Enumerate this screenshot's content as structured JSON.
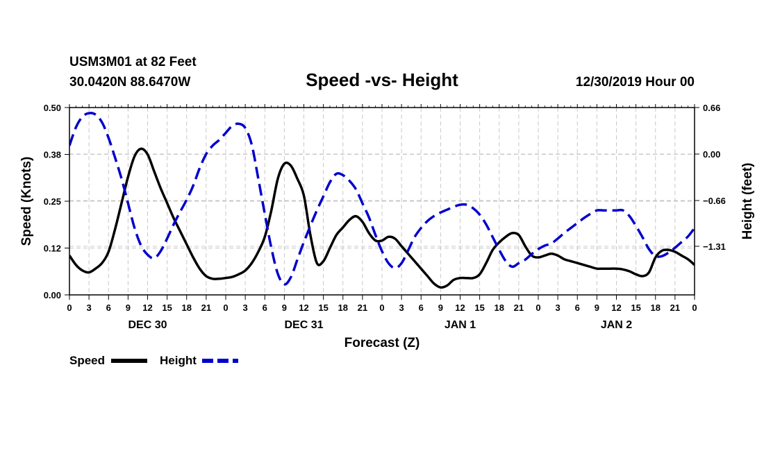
{
  "header": {
    "station": "USM3M01 at 82 Feet",
    "coords": "30.0420N 88.6470W",
    "title": "Speed -vs- Height",
    "datetime": "12/30/2019 Hour 00"
  },
  "chart_data": {
    "type": "line",
    "title": "Speed -vs- Height",
    "xlabel": "Forecast (Z)",
    "ylabel_left": "Speed (Knots)",
    "ylabel_right": "Height (feet)",
    "x_range_hours": [
      0,
      96
    ],
    "ylim_left": [
      0.0,
      0.5
    ],
    "ylim_right": [
      -2.0,
      0.66
    ],
    "y_ticks_left": [
      "0.00",
      "0.12",
      "0.25",
      "0.38",
      "0.50"
    ],
    "y_ticks_left_values": [
      0.0,
      0.125,
      0.25,
      0.375,
      0.5
    ],
    "y_ticks_right": [
      "0.66",
      "0.00",
      "−0.66",
      "−1.31"
    ],
    "y_ticks_right_values": [
      0.66,
      0.0,
      -0.66,
      -1.31
    ],
    "x_tick_labels": [
      "0",
      "3",
      "6",
      "9",
      "12",
      "15",
      "18",
      "21",
      "0",
      "3",
      "6",
      "9",
      "12",
      "15",
      "18",
      "21",
      "0",
      "3",
      "6",
      "9",
      "12",
      "15",
      "18",
      "21",
      "0",
      "3",
      "6",
      "9",
      "12",
      "15",
      "18",
      "21",
      "0"
    ],
    "date_labels": [
      {
        "label": "DEC 30",
        "hour": 12
      },
      {
        "label": "DEC 31",
        "hour": 36
      },
      {
        "label": "JAN 1",
        "hour": 60
      },
      {
        "label": "JAN 2",
        "hour": 84
      }
    ],
    "grid": true,
    "legend_position": "bottom-left",
    "series": [
      {
        "name": "Speed",
        "axis": "left",
        "color": "#000000",
        "style": "solid",
        "x": [
          0,
          1,
          2,
          3,
          4,
          5,
          6,
          7,
          8,
          9,
          10,
          11,
          12,
          13,
          14,
          15,
          16,
          17,
          18,
          19,
          20,
          21,
          22,
          23,
          24,
          25,
          26,
          27,
          28,
          29,
          30,
          31,
          32,
          33,
          34,
          35,
          36,
          37,
          38,
          39,
          40,
          41,
          42,
          43,
          44,
          45,
          46,
          47,
          48,
          49,
          50,
          51,
          52,
          53,
          54,
          55,
          56,
          57,
          58,
          59,
          60,
          61,
          62,
          63,
          64,
          65,
          66,
          67,
          68,
          69,
          70,
          71,
          72,
          73,
          74,
          75,
          76,
          77,
          78,
          79,
          80,
          81,
          82,
          83,
          84,
          85,
          86,
          87,
          88,
          89,
          90,
          91,
          92,
          93,
          94,
          95,
          96
        ],
        "values": [
          0.105,
          0.08,
          0.065,
          0.06,
          0.07,
          0.085,
          0.115,
          0.175,
          0.245,
          0.315,
          0.37,
          0.39,
          0.375,
          0.33,
          0.285,
          0.245,
          0.205,
          0.17,
          0.135,
          0.1,
          0.07,
          0.05,
          0.043,
          0.043,
          0.045,
          0.048,
          0.055,
          0.065,
          0.085,
          0.115,
          0.155,
          0.225,
          0.31,
          0.35,
          0.345,
          0.31,
          0.265,
          0.16,
          0.085,
          0.09,
          0.125,
          0.16,
          0.18,
          0.2,
          0.21,
          0.195,
          0.165,
          0.145,
          0.145,
          0.155,
          0.15,
          0.13,
          0.11,
          0.09,
          0.07,
          0.05,
          0.03,
          0.02,
          0.025,
          0.04,
          0.045,
          0.045,
          0.045,
          0.055,
          0.085,
          0.12,
          0.14,
          0.155,
          0.165,
          0.16,
          0.13,
          0.105,
          0.1,
          0.105,
          0.11,
          0.105,
          0.095,
          0.09,
          0.085,
          0.08,
          0.075,
          0.07,
          0.07,
          0.07,
          0.07,
          0.068,
          0.063,
          0.055,
          0.05,
          0.06,
          0.1,
          0.118,
          0.12,
          0.115,
          0.105,
          0.095,
          0.08
        ]
      },
      {
        "name": "Height",
        "axis": "right",
        "color": "#0000cc",
        "style": "dashed",
        "x": [
          0,
          1,
          2,
          3,
          4,
          5,
          6,
          7,
          8,
          9,
          10,
          11,
          12,
          13,
          14,
          15,
          16,
          17,
          18,
          19,
          20,
          21,
          22,
          23,
          24,
          25,
          26,
          27,
          28,
          29,
          30,
          31,
          32,
          33,
          34,
          35,
          36,
          37,
          38,
          39,
          40,
          41,
          42,
          43,
          44,
          45,
          46,
          47,
          48,
          49,
          50,
          51,
          52,
          53,
          54,
          55,
          56,
          57,
          58,
          59,
          60,
          61,
          62,
          63,
          64,
          65,
          66,
          67,
          68,
          69,
          70,
          71,
          72,
          73,
          74,
          75,
          76,
          77,
          78,
          79,
          80,
          81,
          82,
          83,
          84,
          85,
          86,
          87,
          88,
          89,
          90,
          91,
          92,
          93,
          94,
          95,
          96
        ],
        "values": [
          0.12,
          0.38,
          0.53,
          0.58,
          0.56,
          0.45,
          0.23,
          -0.05,
          -0.35,
          -0.7,
          -1.05,
          -1.3,
          -1.43,
          -1.48,
          -1.38,
          -1.2,
          -1.0,
          -0.82,
          -0.65,
          -0.45,
          -0.2,
          0.0,
          0.12,
          0.2,
          0.3,
          0.4,
          0.43,
          0.37,
          0.13,
          -0.35,
          -0.85,
          -1.33,
          -1.7,
          -1.85,
          -1.75,
          -1.5,
          -1.25,
          -1.02,
          -0.8,
          -0.6,
          -0.4,
          -0.28,
          -0.3,
          -0.38,
          -0.5,
          -0.7,
          -0.9,
          -1.15,
          -1.38,
          -1.55,
          -1.62,
          -1.55,
          -1.37,
          -1.18,
          -1.05,
          -0.95,
          -0.88,
          -0.83,
          -0.79,
          -0.75,
          -0.72,
          -0.72,
          -0.77,
          -0.86,
          -1.0,
          -1.18,
          -1.36,
          -1.52,
          -1.6,
          -1.55,
          -1.5,
          -1.42,
          -1.35,
          -1.3,
          -1.27,
          -1.2,
          -1.12,
          -1.05,
          -0.98,
          -0.91,
          -0.85,
          -0.8,
          -0.8,
          -0.8,
          -0.8,
          -0.8,
          -0.88,
          -1.02,
          -1.18,
          -1.35,
          -1.45,
          -1.45,
          -1.4,
          -1.33,
          -1.25,
          -1.17,
          -1.05
        ]
      }
    ]
  },
  "legend": {
    "items": [
      {
        "label": "Speed",
        "color": "#000000",
        "style": "solid"
      },
      {
        "label": "Height",
        "color": "#0000cc",
        "style": "dashed"
      }
    ]
  }
}
